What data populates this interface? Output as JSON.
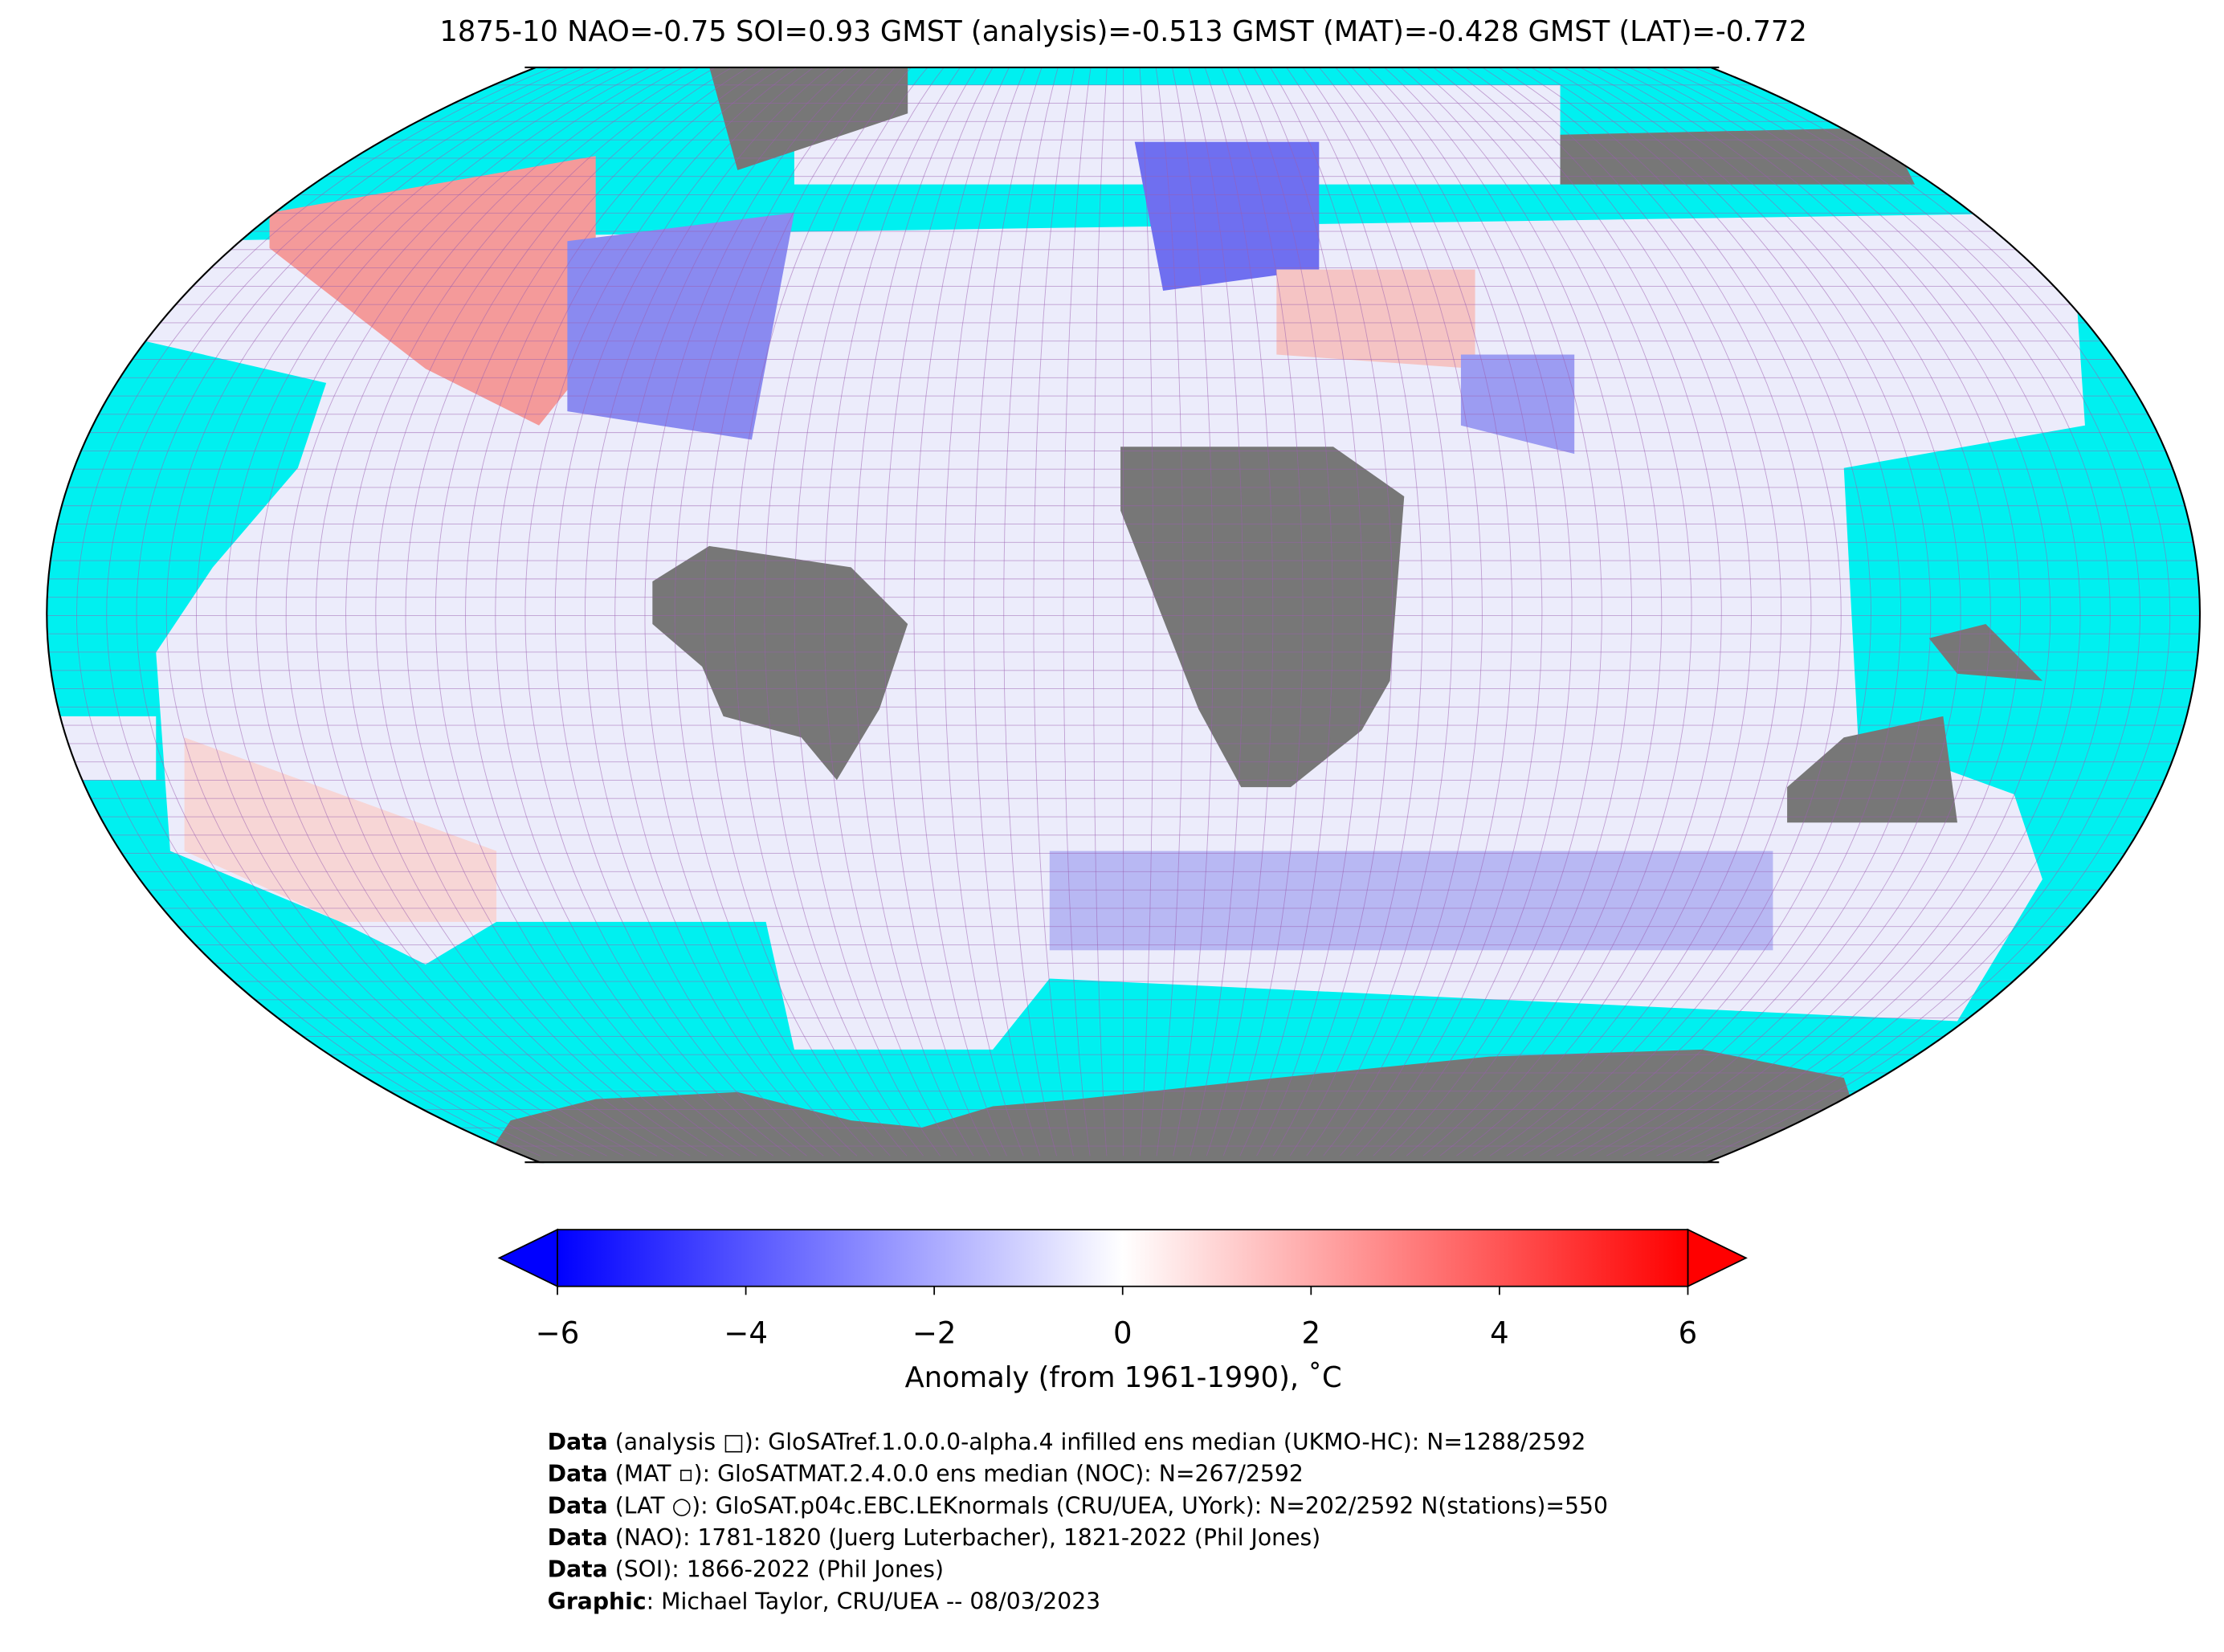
{
  "title": "1875-10 NAO=-0.75 SOI=0.93 GMST (analysis)=-0.513 GMST (MAT)=-0.428 GMST (LAT)=-0.772",
  "colorbar": {
    "label": "Anomaly (from 1961-1990), ˚C",
    "lim": [
      -6,
      6
    ],
    "colors": [
      "#0000ff",
      "#ffffff",
      "#ff0000"
    ],
    "ticks": [
      {
        "value": -6,
        "label": "−6"
      },
      {
        "value": -4,
        "label": "−4"
      },
      {
        "value": -2,
        "label": "−2"
      },
      0,
      2,
      4,
      6
    ]
  },
  "credits": [
    {
      "bold": "Data",
      "text": " (analysis □): GloSATref.1.0.0.0-alpha.4 infilled ens median (UKMO-HC): N=1288/2592"
    },
    {
      "bold": "Data",
      "text": " (MAT ▫): GloSATMAT.2.4.0.0 ens median (NOC): N=267/2592"
    },
    {
      "bold": "Data",
      "text": " (LAT ○): GloSAT.p04c.EBC.LEKnormals (CRU/UEA, UYork): N=202/2592 N(stations)=550"
    },
    {
      "bold": "Data",
      "text": " (NAO): 1781-1820 (Juerg Luterbacher), 1821-2022 (Phil Jones)"
    },
    {
      "bold": "Data",
      "text": " (SOI): 1866-2022 (Phil Jones)"
    },
    {
      "bold": "Graphic",
      "text": ": Michael Taylor, CRU/UEA -- 08/03/2023"
    }
  ]
}
